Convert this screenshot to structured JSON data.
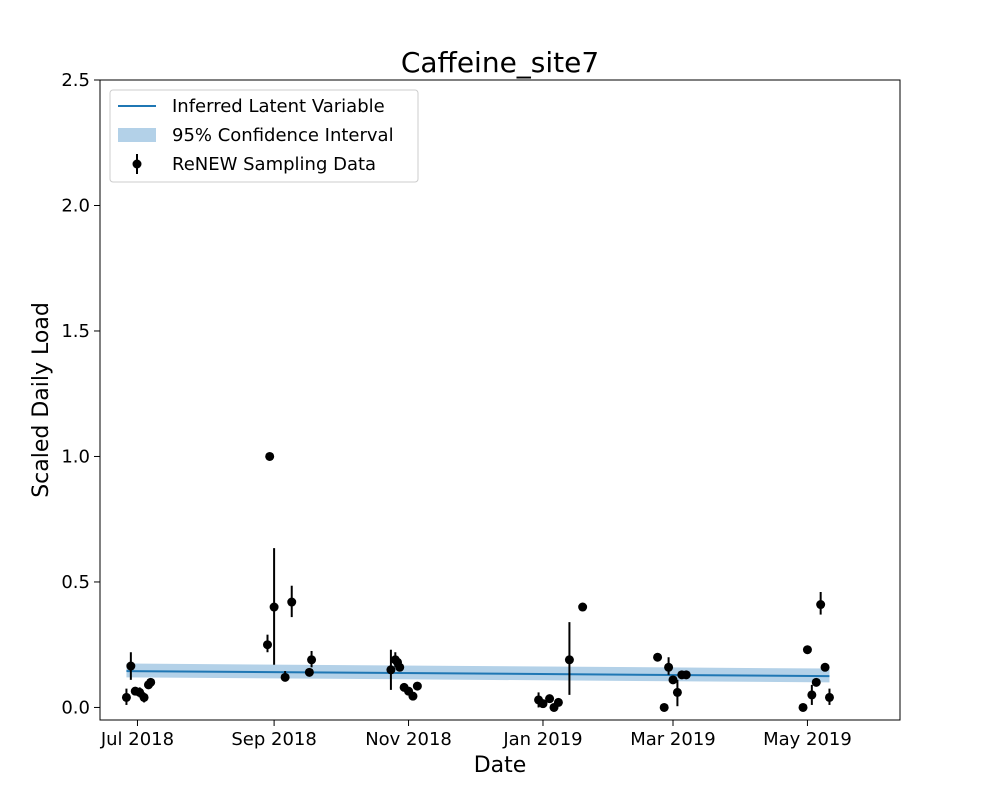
{
  "chart_data": {
    "type": "scatter",
    "title": "Caffeine_site7",
    "xlabel": "Date",
    "ylabel": "Scaled Daily Load",
    "xlim": [
      "2018-06-14",
      "2019-06-12"
    ],
    "ylim": [
      -0.05,
      2.5
    ],
    "x_ticks": [
      {
        "date": "2018-07-01",
        "label": "Jul 2018"
      },
      {
        "date": "2018-09-01",
        "label": "Sep 2018"
      },
      {
        "date": "2018-11-01",
        "label": "Nov 2018"
      },
      {
        "date": "2019-01-01",
        "label": "Jan 2019"
      },
      {
        "date": "2019-03-01",
        "label": "Mar 2019"
      },
      {
        "date": "2019-05-01",
        "label": "May 2019"
      }
    ],
    "y_ticks": [
      {
        "value": 0.0,
        "label": "0.0"
      },
      {
        "value": 0.5,
        "label": "0.5"
      },
      {
        "value": 1.0,
        "label": "1.0"
      },
      {
        "value": 1.5,
        "label": "1.5"
      },
      {
        "value": 2.0,
        "label": "2.0"
      },
      {
        "value": 2.5,
        "label": "2.5"
      }
    ],
    "legend": {
      "position": "top-left",
      "entries": [
        {
          "label": "Inferred Latent Variable",
          "kind": "line"
        },
        {
          "label": "95% Confidence Interval",
          "kind": "band"
        },
        {
          "label": "ReNEW Sampling Data",
          "kind": "errorbar"
        }
      ]
    },
    "colors": {
      "line": "#1f77b4",
      "band": "#b3d1e8",
      "points": "#000000"
    },
    "series": [
      {
        "name": "Inferred Latent Variable",
        "kind": "line",
        "x": [
          "2018-06-26",
          "2019-05-11"
        ],
        "y": [
          0.145,
          0.125
        ]
      },
      {
        "name": "95% Confidence Interval",
        "kind": "band",
        "x": [
          "2018-06-26",
          "2019-05-11"
        ],
        "lower": [
          0.12,
          0.1
        ],
        "upper": [
          0.175,
          0.155
        ]
      },
      {
        "name": "ReNEW Sampling Data",
        "kind": "errorbar",
        "points": [
          {
            "date": "2018-06-26",
            "y": 0.04,
            "lo": 0.01,
            "hi": 0.075
          },
          {
            "date": "2018-06-28",
            "y": 0.165,
            "lo": 0.11,
            "hi": 0.22
          },
          {
            "date": "2018-06-30",
            "y": 0.065
          },
          {
            "date": "2018-07-02",
            "y": 0.06,
            "lo": 0.04,
            "hi": 0.08
          },
          {
            "date": "2018-07-04",
            "y": 0.04,
            "lo": 0.02,
            "hi": 0.06
          },
          {
            "date": "2018-07-06",
            "y": 0.09
          },
          {
            "date": "2018-07-07",
            "y": 0.1
          },
          {
            "date": "2018-08-29",
            "y": 0.25,
            "lo": 0.22,
            "hi": 0.29
          },
          {
            "date": "2018-08-30",
            "y": 1.0
          },
          {
            "date": "2018-09-01",
            "y": 0.4,
            "lo": 0.17,
            "hi": 0.635
          },
          {
            "date": "2018-09-06",
            "y": 0.12,
            "lo": 0.105,
            "hi": 0.145
          },
          {
            "date": "2018-09-09",
            "y": 0.42,
            "lo": 0.36,
            "hi": 0.485
          },
          {
            "date": "2018-09-17",
            "y": 0.14
          },
          {
            "date": "2018-09-18",
            "y": 0.19,
            "lo": 0.16,
            "hi": 0.225
          },
          {
            "date": "2018-10-24",
            "y": 0.15,
            "lo": 0.07,
            "hi": 0.23
          },
          {
            "date": "2018-10-26",
            "y": 0.19,
            "lo": 0.16,
            "hi": 0.22
          },
          {
            "date": "2018-10-27",
            "y": 0.18
          },
          {
            "date": "2018-10-28",
            "y": 0.16
          },
          {
            "date": "2018-10-30",
            "y": 0.08
          },
          {
            "date": "2018-11-01",
            "y": 0.065
          },
          {
            "date": "2018-11-03",
            "y": 0.045
          },
          {
            "date": "2018-11-05",
            "y": 0.085
          },
          {
            "date": "2018-12-30",
            "y": 0.03,
            "lo": 0.0,
            "hi": 0.06
          },
          {
            "date": "2019-01-01",
            "y": 0.015
          },
          {
            "date": "2019-01-04",
            "y": 0.035
          },
          {
            "date": "2019-01-06",
            "y": 0.0
          },
          {
            "date": "2019-01-08",
            "y": 0.02
          },
          {
            "date": "2019-01-13",
            "y": 0.19,
            "lo": 0.05,
            "hi": 0.34
          },
          {
            "date": "2019-01-19",
            "y": 0.4
          },
          {
            "date": "2019-02-22",
            "y": 0.2
          },
          {
            "date": "2019-02-25",
            "y": 0.0
          },
          {
            "date": "2019-02-27",
            "y": 0.16,
            "lo": 0.13,
            "hi": 0.2
          },
          {
            "date": "2019-03-01",
            "y": 0.11
          },
          {
            "date": "2019-03-03",
            "y": 0.06,
            "lo": 0.005,
            "hi": 0.11
          },
          {
            "date": "2019-03-05",
            "y": 0.13
          },
          {
            "date": "2019-03-07",
            "y": 0.13
          },
          {
            "date": "2019-04-29",
            "y": 0.0
          },
          {
            "date": "2019-05-01",
            "y": 0.23
          },
          {
            "date": "2019-05-03",
            "y": 0.05,
            "lo": 0.01,
            "hi": 0.09
          },
          {
            "date": "2019-05-05",
            "y": 0.1
          },
          {
            "date": "2019-05-07",
            "y": 0.41,
            "lo": 0.37,
            "hi": 0.46
          },
          {
            "date": "2019-05-09",
            "y": 0.16
          },
          {
            "date": "2019-05-11",
            "y": 0.04,
            "lo": 0.01,
            "hi": 0.075
          }
        ]
      }
    ]
  }
}
